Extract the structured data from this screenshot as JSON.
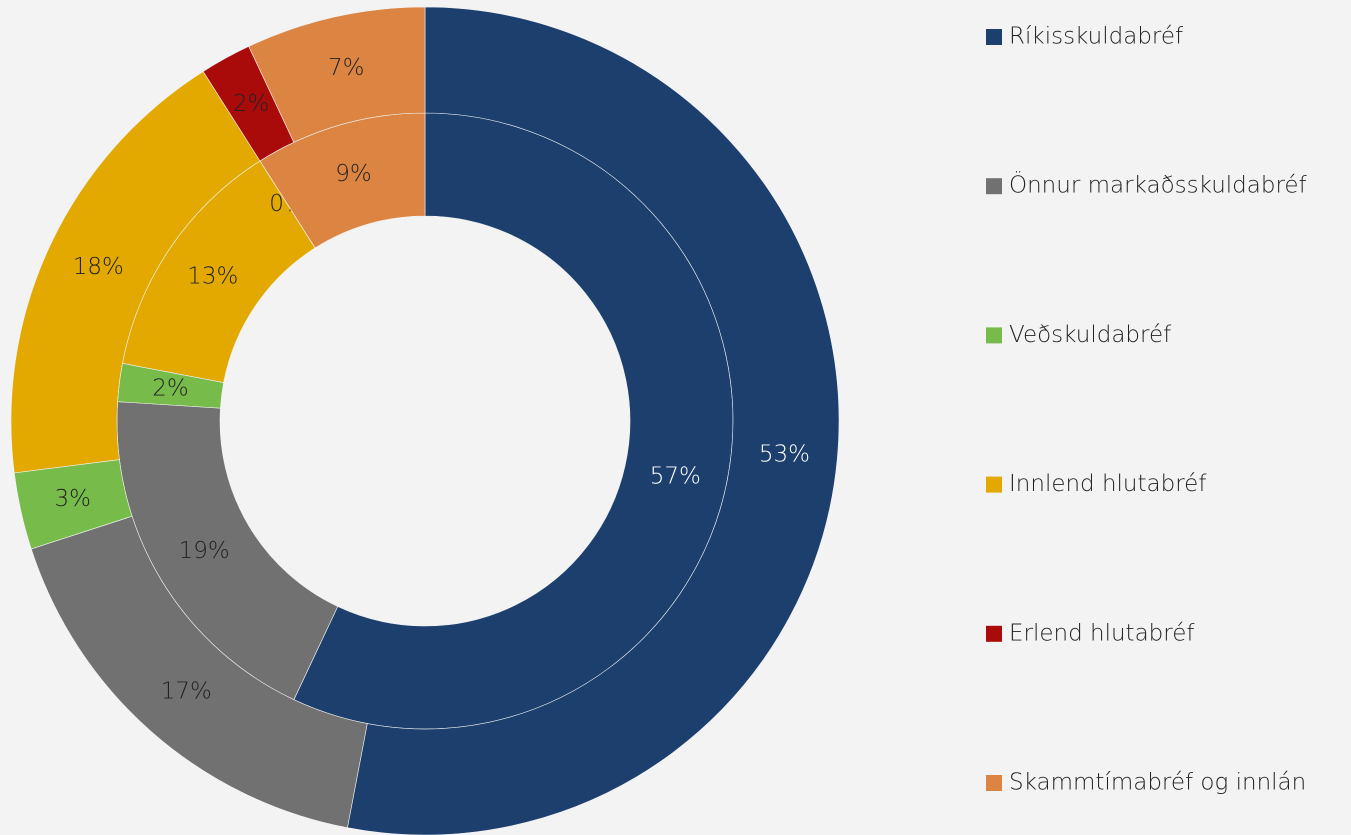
{
  "chart_data": {
    "type": "donut",
    "categories": [
      "Ríkisskuldabréf",
      "Önnur markaðsskuldabréf",
      "Veðskuldabréf",
      "Innlend hlutabréf",
      "Erlend hlutabréf",
      "Skammtímabréf og innlán"
    ],
    "colors": [
      "#1c3f6e",
      "#717171",
      "#77bb4a",
      "#e3a900",
      "#a90b0b",
      "#dc8543"
    ],
    "series": [
      {
        "values": [
          57,
          19,
          2,
          13,
          0,
          9
        ],
        "value_labels": [
          "57%",
          "19%",
          "2%",
          "13%",
          "0%",
          "9%"
        ]
      },
      {
        "values": [
          53,
          17,
          3,
          18,
          2,
          7
        ],
        "value_labels": [
          "53%",
          "17%",
          "3%",
          "18%",
          "2%",
          "7%"
        ]
      }
    ],
    "legend": "right"
  }
}
